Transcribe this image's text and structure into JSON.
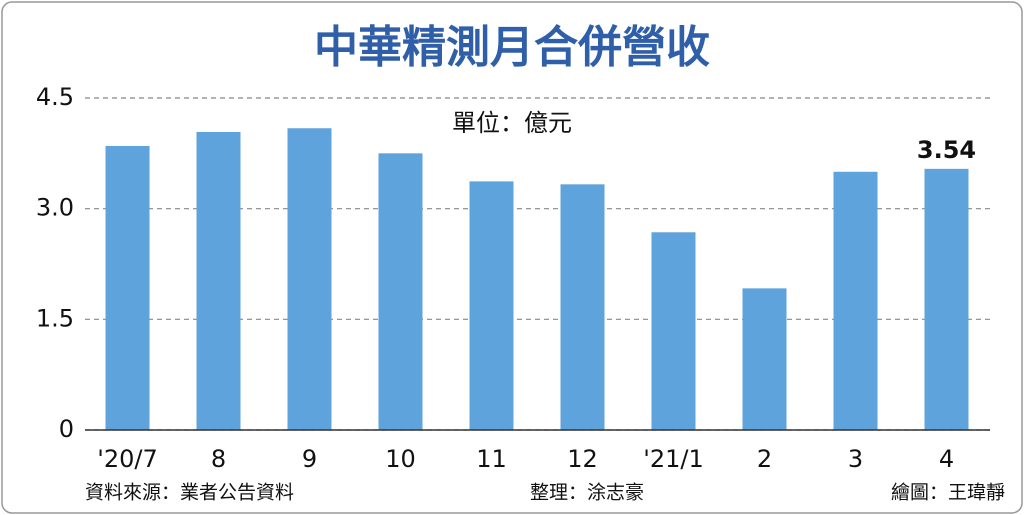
{
  "chart_data": {
    "type": "bar",
    "title": "中華精測月合併營收",
    "unit_note": "單位：億元",
    "categories": [
      "'20/7",
      "8",
      "9",
      "10",
      "11",
      "12",
      "'21/1",
      "2",
      "3",
      "4"
    ],
    "values": [
      3.85,
      4.04,
      4.09,
      3.75,
      3.37,
      3.33,
      2.68,
      1.92,
      3.5,
      3.54
    ],
    "value_labels": [
      null,
      null,
      null,
      null,
      null,
      null,
      null,
      null,
      null,
      "3.54"
    ],
    "color": "#5fa3dc",
    "ylim": [
      0,
      4.5
    ],
    "yticks": [
      0,
      1.5,
      {
        "value": 3,
        "label": "3.0"
      },
      4.5
    ],
    "grid": true,
    "source": "資料來源：業者公告資料",
    "editor": "整理：涂志豪",
    "illustrator": "繪圖：王瑋靜"
  }
}
